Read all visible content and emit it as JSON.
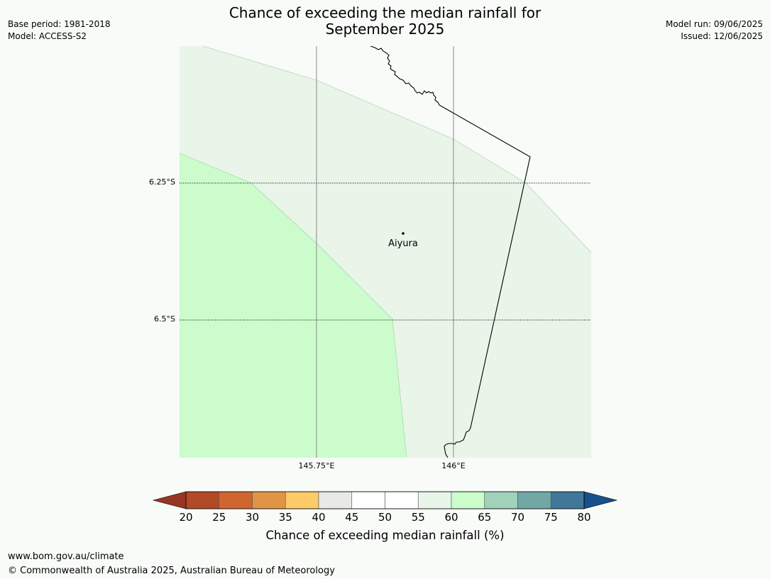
{
  "header": {
    "title_line1": "Chance of exceeding the median rainfall for",
    "title_line2": "September 2025",
    "base_period": "Base period: 1981-2018",
    "model": "Model: ACCESS-S2",
    "model_run": "Model run: 09/06/2025",
    "issued": "Issued: 12/06/2025"
  },
  "map": {
    "latitude_labels": [
      "6.25°S",
      "6.5°S"
    ],
    "longitude_labels": [
      "145.75°E",
      "146°E"
    ],
    "place": {
      "name": "Aiyura"
    },
    "region_colors": {
      "band_60_65": "#e9f5e9",
      "band_65_70": "#ccfccc"
    }
  },
  "colorbar": {
    "title": "Chance of exceeding median rainfall (%)",
    "ticks": [
      "20",
      "25",
      "30",
      "35",
      "40",
      "45",
      "50",
      "55",
      "60",
      "65",
      "70",
      "75",
      "80"
    ],
    "under_color": "#983623",
    "over_color": "#17508a",
    "colors": [
      "#b24a27",
      "#d0662f",
      "#e29445",
      "#fdcc68",
      "#e9e9e5",
      "#ffffff",
      "#ffffff",
      "#e9f5e9",
      "#ccfccc",
      "#9fd1bb",
      "#71a7a5",
      "#41789a"
    ]
  },
  "footer": {
    "url": "www.bom.gov.au/climate",
    "copyright": "© Commonwealth of Australia 2025, Australian Bureau of Meteorology"
  }
}
